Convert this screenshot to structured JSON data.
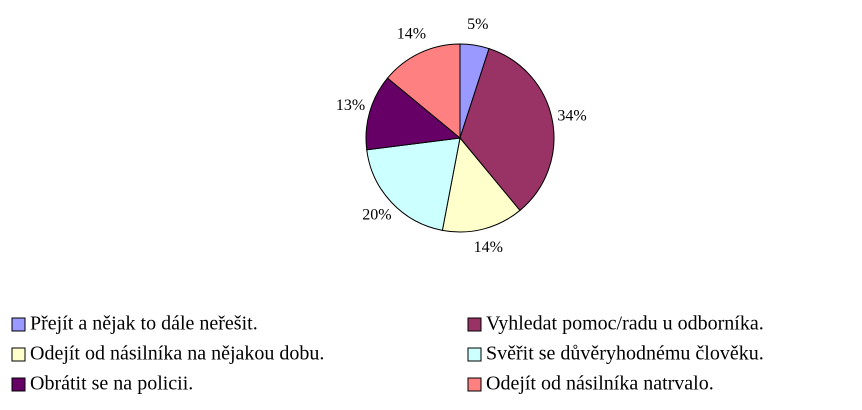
{
  "chart_data": {
    "type": "pie",
    "categories": [
      "Přejít a nějak to dále neřešit.",
      "Vyhledat pomoc/radu u odborníka.",
      "Odejít od násilníka na nějakou dobu.",
      "Svěřit se důvěryhodnému člověku.",
      "Obrátit se na policii.",
      "Odejít od násilníka natrvalo."
    ],
    "values": [
      5,
      34,
      14,
      20,
      13,
      14
    ],
    "value_labels": [
      "5%",
      "34%",
      "14%",
      "20%",
      "13%",
      "14%"
    ],
    "colors": [
      "#9999ff",
      "#993366",
      "#ffffcc",
      "#ccffff",
      "#660066",
      "#ff8080"
    ],
    "legend": "bottom"
  }
}
